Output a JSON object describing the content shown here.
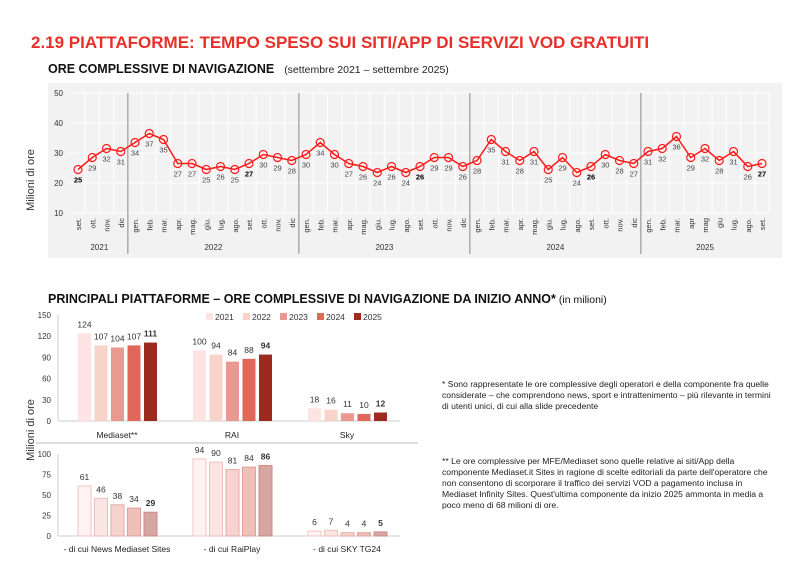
{
  "title": "2.19 PIATTAFORME: TEMPO SPESO SUI SITI/APP DI SERVIZI VOD GRATUITI",
  "line_section": {
    "title": "ORE COMPLESSIVE DI NAVIGAZIONE",
    "period": "(settembre 2021 – settembre 2025)"
  },
  "bar_section": {
    "title": "PRINCIPALI PIATTAFORME – ORE COMPLESSIVE DI NAVIGAZIONE DA INIZIO ANNO*",
    "unit": "(in milioni)"
  },
  "notes": [
    "* Sono rappresentate le ore complessive degli operatori e della componente fra quelle considerate – che comprendono news, sport e intrattenimento – più rilevante in termini di utenti unici, di cui alla slide precedente",
    "** Le ore complessive per MFE/Mediaset sono quelle relative ai siti/App della componente Mediaset.it Sites in ragione di scelte editoriali da parte dell'operatore che non consentono di scorporare il traffico dei servizi VOD a pagamento inclusa in Mediaset Infinity Sites. Quest'ultima componente da inizio 2025 ammonta in media a poco meno di 68 milioni di ore."
  ],
  "chart_data": [
    {
      "type": "line",
      "ylabel": "Milioni di ore",
      "ylim": [
        10,
        50
      ],
      "yticks": [
        "10",
        "20",
        "30",
        "40",
        "50"
      ],
      "grid": true,
      "color": "#ff1a1a",
      "background": "#f2f2f2",
      "years": [
        {
          "label": "2021",
          "months": [
            "set.",
            "ott.",
            "nov.",
            "dic"
          ]
        },
        {
          "label": "2022",
          "months": [
            "gen.",
            "feb.",
            "mar.",
            "apr.",
            "mag.",
            "giu.",
            "lug.",
            "ago.",
            "set.",
            "ott.",
            "nov.",
            "dic"
          ]
        },
        {
          "label": "2023",
          "months": [
            "gen.",
            "feb.",
            "mar.",
            "apr.",
            "mag.",
            "giu.",
            "lug.",
            "ago.",
            "set.",
            "ott.",
            "nov.",
            "dic"
          ]
        },
        {
          "label": "2024",
          "months": [
            "gen.",
            "feb.",
            "mar.",
            "apr.",
            "mag.",
            "giu.",
            "lug.",
            "ago.",
            "set.",
            "ott.",
            "nov.",
            "dic"
          ]
        },
        {
          "label": "2025",
          "months": [
            "gen.",
            "feb.",
            "mar.",
            "apr",
            "mag",
            "giu",
            "lug.",
            "ago.",
            "set."
          ]
        }
      ],
      "values": [
        25,
        29,
        32,
        31,
        34,
        37,
        35,
        27,
        27,
        25,
        26,
        25,
        27,
        30,
        29,
        28,
        30,
        34,
        30,
        27,
        26,
        24,
        26,
        24,
        26,
        29,
        29,
        26,
        28,
        35,
        31,
        28,
        31,
        25,
        29,
        24,
        26,
        30,
        28,
        27,
        31,
        32,
        36,
        29,
        32,
        28,
        31,
        26,
        27
      ],
      "highlighted_months": [
        "set."
      ]
    },
    {
      "type": "bar",
      "ylabel": "Milioni di ore",
      "legend": [
        "2021",
        "2022",
        "2023",
        "2024",
        "2025"
      ],
      "legend_position": "top",
      "panels": [
        {
          "ylim": [
            0,
            150
          ],
          "yticks": [
            "0",
            "30",
            "60",
            "90",
            "120",
            "150"
          ],
          "colors": [
            "#fde3e1",
            "#f8d3ca",
            "#e9998f",
            "#e0675a",
            "#9c2a1f"
          ],
          "groups": [
            {
              "label": "Mediaset**",
              "values": [
                124,
                107,
                104,
                107,
                111
              ]
            },
            {
              "label": "RAI",
              "values": [
                100,
                94,
                84,
                88,
                94
              ]
            },
            {
              "label": "Sky",
              "values": [
                18,
                16,
                11,
                10,
                12
              ]
            }
          ]
        },
        {
          "ylim": [
            0,
            100
          ],
          "yticks": [
            "0",
            "25",
            "50",
            "75",
            "100"
          ],
          "colors": [
            "#fef3f2",
            "#fbe5e2",
            "#f6d3ce",
            "#efbfb9",
            "#d6a6a2"
          ],
          "groups": [
            {
              "label": "- di cui News Mediaset Sites",
              "values": [
                61,
                46,
                38,
                34,
                29
              ]
            },
            {
              "label": "-  di cui RaiPlay",
              "values": [
                94,
                90,
                81,
                84,
                86
              ]
            },
            {
              "label": "- di cui SKY TG24",
              "values": [
                6,
                7,
                4,
                4,
                5
              ]
            }
          ]
        }
      ]
    }
  ]
}
